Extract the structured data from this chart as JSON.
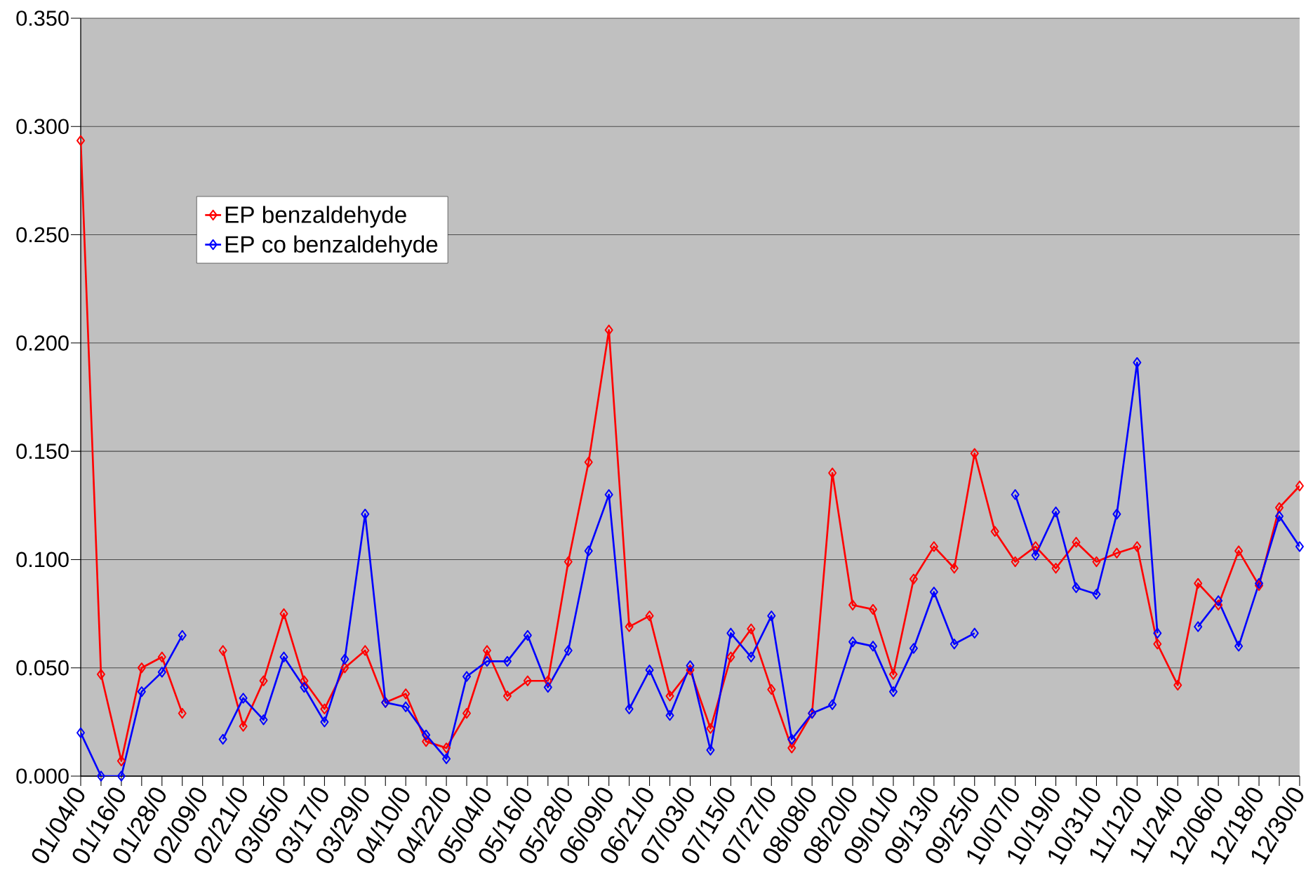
{
  "chart_data": {
    "type": "line",
    "categories": [
      "01/04/0",
      null,
      "01/16/0",
      null,
      "01/28/0",
      null,
      "02/09/0",
      null,
      "02/21/0",
      null,
      "03/05/0",
      null,
      "03/17/0",
      null,
      "03/29/0",
      null,
      "04/10/0",
      null,
      "04/22/0",
      null,
      "05/04/0",
      null,
      "05/16/0",
      null,
      "05/28/0",
      null,
      "06/09/0",
      null,
      "06/21/0",
      null,
      "07/03/0",
      null,
      "07/15/0",
      null,
      "07/27/0",
      null,
      "08/08/0",
      null,
      "08/20/0",
      null,
      "09/01/0",
      null,
      "09/13/0",
      null,
      "09/25/0",
      null,
      "10/07/0",
      null,
      "10/19/0",
      null,
      "10/31/0",
      null,
      "11/12/0",
      null,
      "11/24/0",
      null,
      "12/06/0",
      null,
      "12/18/0",
      null,
      "12/30/0"
    ],
    "series": [
      {
        "name": "EP benzaldehyde",
        "color": "#ff0000",
        "values": [
          0.2935,
          0.047,
          0.007,
          0.05,
          0.055,
          0.029,
          null,
          0.058,
          0.023,
          0.044,
          0.075,
          0.044,
          0.031,
          0.05,
          0.058,
          0.034,
          0.038,
          0.016,
          0.013,
          0.029,
          0.058,
          0.037,
          0.044,
          0.044,
          0.099,
          0.145,
          0.206,
          0.069,
          0.074,
          0.037,
          0.049,
          0.022,
          0.055,
          0.068,
          0.04,
          0.013,
          0.029,
          0.14,
          0.079,
          0.077,
          0.047,
          0.091,
          0.106,
          0.096,
          0.149,
          0.113,
          0.099,
          0.106,
          0.096,
          0.108,
          0.099,
          0.103,
          0.106,
          0.061,
          0.042,
          0.089,
          0.079,
          0.104,
          0.088,
          0.124,
          0.134
        ]
      },
      {
        "name": "EP co benzaldehyde",
        "color": "#0000ff",
        "values": [
          0.02,
          0.0,
          0.0,
          0.039,
          0.048,
          0.065,
          null,
          0.017,
          0.036,
          0.026,
          0.055,
          0.041,
          0.025,
          0.054,
          0.121,
          0.034,
          0.032,
          0.019,
          0.008,
          0.046,
          0.053,
          0.053,
          0.065,
          0.041,
          0.058,
          0.104,
          0.13,
          0.031,
          0.049,
          0.028,
          0.051,
          0.012,
          0.066,
          0.055,
          0.074,
          0.017,
          0.029,
          0.033,
          0.062,
          0.06,
          0.039,
          0.059,
          0.085,
          0.061,
          0.066,
          null,
          0.13,
          0.102,
          0.122,
          0.087,
          0.084,
          0.121,
          0.191,
          0.066,
          null,
          0.069,
          0.081,
          0.06,
          0.089,
          0.12,
          0.106
        ]
      }
    ],
    "ylim": [
      0,
      0.35
    ],
    "yticks": [
      {
        "value": 0,
        "label": "0.000"
      },
      {
        "value": 0.05,
        "label": "0.050"
      },
      {
        "value": 0.1,
        "label": "0.100"
      },
      {
        "value": 0.15,
        "label": "0.150"
      },
      {
        "value": 0.2,
        "label": "0.200"
      },
      {
        "value": 0.25,
        "label": "0.250"
      },
      {
        "value": 0.3,
        "label": "0.300"
      },
      {
        "value": 0.35,
        "label": "0.350"
      }
    ],
    "grid": "y",
    "legend": "top left",
    "marker": "diamond",
    "line_style": "solid"
  }
}
